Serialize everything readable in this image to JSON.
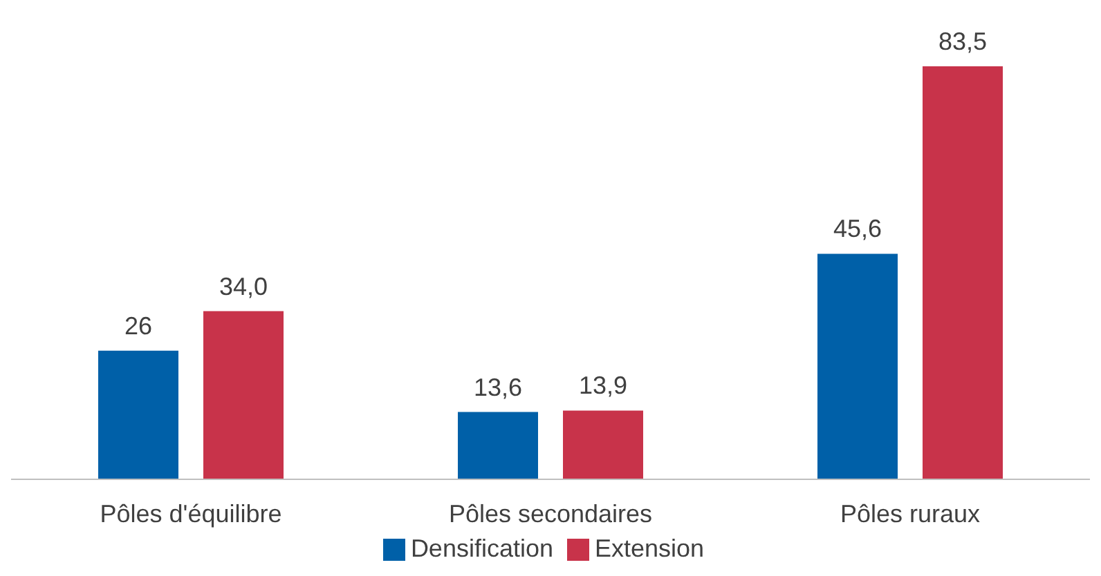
{
  "chart_data": {
    "type": "bar",
    "categories": [
      "Pôles d'équilibre",
      "Pôles secondaires",
      "Pôles ruraux"
    ],
    "series": [
      {
        "name": "Densification",
        "color": "#0060a8",
        "values": [
          26,
          13.6,
          45.6
        ],
        "value_labels": [
          "26",
          "13,6",
          "45,6"
        ]
      },
      {
        "name": "Extension",
        "color": "#c8334a",
        "values": [
          34.0,
          13.9,
          83.5
        ],
        "value_labels": [
          "34,0",
          "13,9",
          "83,5"
        ]
      }
    ],
    "legend": "bottom",
    "grid": false
  }
}
